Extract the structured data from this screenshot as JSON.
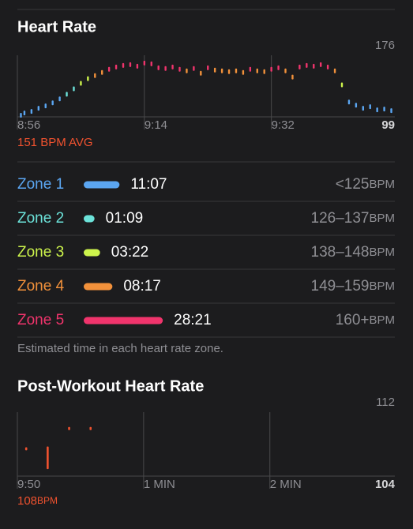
{
  "header": {
    "title": "Heart Rate"
  },
  "heart_rate_chart": {
    "type": "range-bar",
    "ylim": [
      99,
      176
    ],
    "yticks": [
      99,
      176
    ],
    "xlim": [
      0,
      53.5
    ],
    "xticks": [
      {
        "value": 0,
        "label": "8:56"
      },
      {
        "value": 18,
        "label": "9:14"
      },
      {
        "value": 36,
        "label": "9:32"
      }
    ],
    "x": [
      0.5,
      1,
      2,
      3,
      4,
      5,
      6,
      7,
      8,
      9,
      10,
      11,
      12,
      13,
      14,
      15,
      16,
      17,
      18,
      19,
      20,
      21,
      22,
      23,
      24,
      25,
      26,
      27,
      28,
      29,
      30,
      31,
      32,
      33,
      34,
      35,
      36,
      37,
      38,
      39,
      40,
      41,
      42,
      43,
      44,
      45,
      46,
      47,
      48,
      49,
      50,
      51,
      52,
      53
    ],
    "values": [
      101,
      104,
      106,
      110,
      113,
      117,
      122,
      128,
      135,
      142,
      148,
      152,
      156,
      160,
      163,
      165,
      166,
      164,
      168,
      167,
      162,
      161,
      163,
      160,
      158,
      161,
      155,
      162,
      159,
      158,
      157,
      158,
      156,
      160,
      158,
      157,
      160,
      162,
      158,
      150,
      163,
      165,
      164,
      166,
      163,
      158,
      140,
      118,
      114,
      110,
      112,
      108,
      109,
      107
    ],
    "average": "151 BPM AVG"
  },
  "zones": [
    {
      "name": "Zone 1",
      "duration": "11:07",
      "range": "<125",
      "unit": "BPM",
      "color": "#5ba6f2"
    },
    {
      "name": "Zone 2",
      "duration": "01:09",
      "range": "126–137",
      "unit": "BPM",
      "color": "#6ce3da"
    },
    {
      "name": "Zone 3",
      "duration": "03:22",
      "range": "138–148",
      "unit": "BPM",
      "color": "#cdf44c"
    },
    {
      "name": "Zone 4",
      "duration": "08:17",
      "range": "149–159",
      "unit": "BPM",
      "color": "#f2913b"
    },
    {
      "name": "Zone 5",
      "duration": "28:21",
      "range": "160+",
      "unit": "BPM",
      "color": "#f0346c"
    }
  ],
  "footnote": "Estimated time in each heart rate zone.",
  "post_workout": {
    "title": "Post-Workout Heart Rate",
    "type": "range-bar",
    "color": "#f0522f",
    "ylim": [
      104,
      112
    ],
    "yticks": [
      104,
      112
    ],
    "xlim": [
      0,
      2.99
    ],
    "xticks": [
      {
        "value": 0,
        "label": "9:50"
      },
      {
        "value": 1,
        "label": "1 MIN"
      },
      {
        "value": 2,
        "label": "2 MIN"
      }
    ],
    "x": [
      0.07,
      0.24,
      0.41,
      0.58
    ],
    "low": [
      107.4,
      105,
      110,
      110
    ],
    "high": [
      107.6,
      107.7,
      110.2,
      110.2
    ],
    "value": 108,
    "unit": "BPM"
  }
}
